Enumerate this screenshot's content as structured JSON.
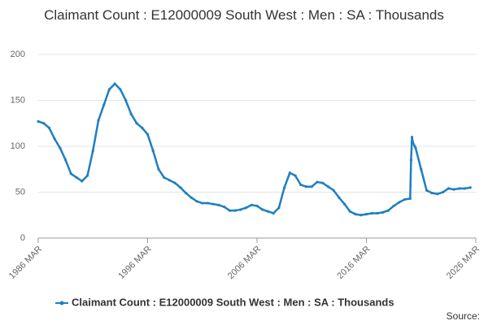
{
  "chart_data": {
    "type": "line",
    "title": "Claimant Count : E12000009 South West : Men : SA : Thousands",
    "source": "Source:",
    "x": [
      "1986 MAR",
      "1986 SEP",
      "1987 MAR",
      "1987 SEP",
      "1988 MAR",
      "1988 SEP",
      "1989 MAR",
      "1989 SEP",
      "1990 MAR",
      "1990 SEP",
      "1991 MAR",
      "1991 SEP",
      "1992 MAR",
      "1992 SEP",
      "1993 MAR",
      "1993 SEP",
      "1994 MAR",
      "1994 SEP",
      "1995 MAR",
      "1995 SEP",
      "1996 MAR",
      "1996 SEP",
      "1997 MAR",
      "1997 SEP",
      "1998 MAR",
      "1998 SEP",
      "1999 MAR",
      "1999 SEP",
      "2000 MAR",
      "2000 SEP",
      "2001 MAR",
      "2001 SEP",
      "2002 MAR",
      "2002 SEP",
      "2003 MAR",
      "2003 SEP",
      "2004 MAR",
      "2004 SEP",
      "2005 MAR",
      "2005 SEP",
      "2006 MAR",
      "2006 SEP",
      "2007 MAR",
      "2007 SEP",
      "2008 MAR",
      "2008 SEP",
      "2009 MAR",
      "2009 SEP",
      "2010 MAR",
      "2010 SEP",
      "2011 MAR",
      "2011 SEP",
      "2012 MAR",
      "2012 SEP",
      "2013 MAR",
      "2013 SEP",
      "2014 MAR",
      "2014 SEP",
      "2015 MAR",
      "2015 SEP",
      "2016 MAR",
      "2016 SEP",
      "2017 MAR",
      "2017 SEP",
      "2018 MAR",
      "2018 SEP",
      "2019 MAR",
      "2019 SEP",
      "2020 MAR",
      "2020 APR",
      "2020 MAY",
      "2020 JUN",
      "2020 AUG",
      "2020 SEP",
      "2021 MAR",
      "2021 SEP",
      "2022 MAR",
      "2022 SEP",
      "2023 MAR",
      "2023 SEP",
      "2024 MAR",
      "2024 SEP",
      "2025 MAR",
      "2025 SEP"
    ],
    "series": [
      {
        "name": "Claimant Count : E12000009 South West : Men : SA : Thousands",
        "color": "#1f7fc0",
        "values": [
          127,
          125,
          120,
          108,
          98,
          85,
          70,
          66,
          62,
          68,
          95,
          128,
          145,
          162,
          168,
          162,
          150,
          135,
          125,
          120,
          113,
          95,
          75,
          66,
          63,
          60,
          55,
          49,
          44,
          40,
          38,
          38,
          37,
          36,
          34,
          30,
          30,
          31,
          33,
          36,
          35,
          31,
          29,
          27,
          33,
          55,
          71,
          68,
          58,
          56,
          56,
          61,
          60,
          56,
          52,
          44,
          37,
          29,
          26,
          25,
          26,
          27,
          27,
          28,
          30,
          35,
          39,
          42,
          43,
          85,
          110,
          104,
          100,
          98,
          75,
          52,
          49,
          48,
          50,
          54,
          53,
          54,
          54,
          55
        ]
      }
    ],
    "xticks": [
      "1986 MAR",
      "1996 MAR",
      "2006 MAR",
      "2016 MAR",
      "2026 MAR"
    ],
    "ylim": [
      0,
      200
    ],
    "yticks": [
      0,
      50,
      100,
      150,
      200
    ],
    "grid": true
  }
}
